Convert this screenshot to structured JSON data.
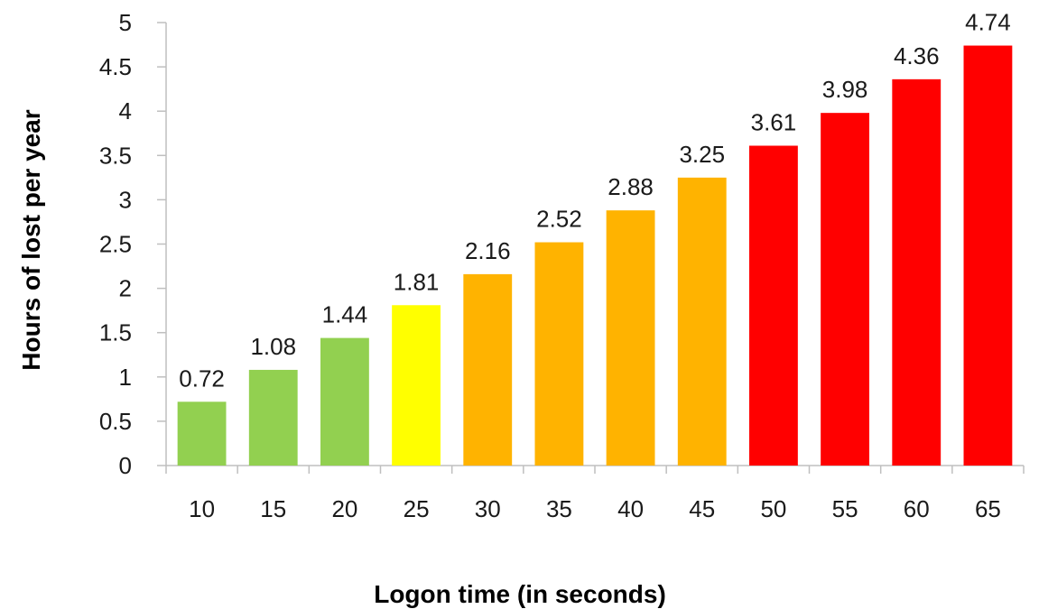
{
  "chart_data": {
    "type": "bar",
    "xlabel": "Logon time (in seconds)",
    "ylabel": "Hours of lost per year",
    "categories": [
      "10",
      "15",
      "20",
      "25",
      "30",
      "35",
      "40",
      "45",
      "50",
      "55",
      "60",
      "65"
    ],
    "values": [
      0.72,
      1.08,
      1.44,
      1.81,
      2.16,
      2.52,
      2.88,
      3.25,
      3.61,
      3.98,
      4.36,
      4.74
    ],
    "data_labels": [
      "0.72",
      "1.08",
      "1.44",
      "1.81",
      "2.16",
      "2.52",
      "2.88",
      "3.25",
      "3.61",
      "3.98",
      "4.36",
      "4.74"
    ],
    "bar_colors": [
      "#92d050",
      "#92d050",
      "#92d050",
      "#ffff00",
      "#ffb300",
      "#ffb300",
      "#ffb300",
      "#ffb300",
      "#ff0000",
      "#ff0000",
      "#ff0000",
      "#ff0000"
    ],
    "ylim": [
      0,
      5
    ],
    "yticks": [
      "0",
      "0.5",
      "1",
      "1.5",
      "2",
      "2.5",
      "3",
      "3.5",
      "4",
      "4.5",
      "5"
    ],
    "grid": false,
    "legend": "none"
  }
}
